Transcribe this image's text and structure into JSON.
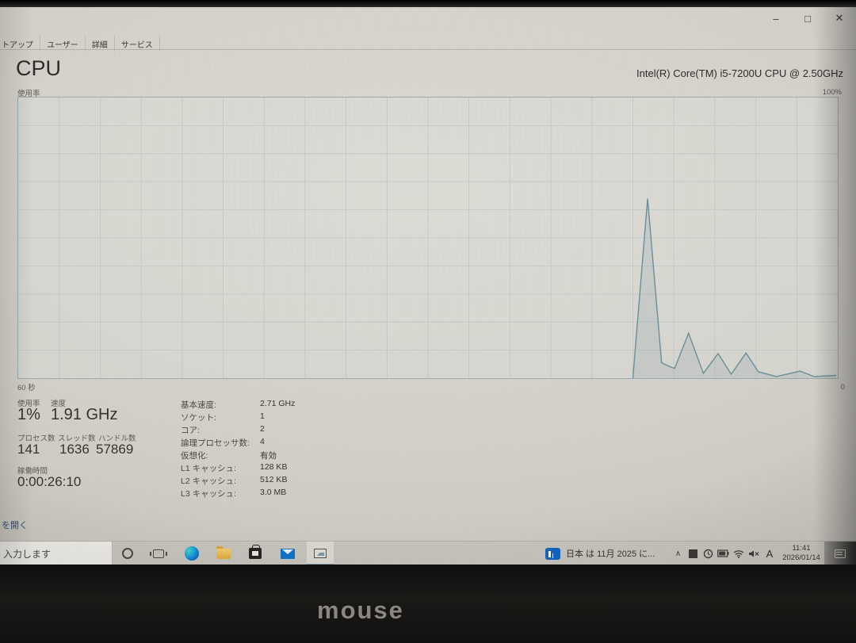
{
  "device": {
    "brand": "mouse"
  },
  "window": {
    "controls": {
      "minimize": "–",
      "maximize": "□",
      "close": "✕"
    },
    "tabs": [
      "トアップ",
      "ユーザー",
      "詳細",
      "サービス"
    ],
    "page_title": "CPU",
    "cpu_name": "Intel(R) Core(TM) i5-7200U CPU @ 2.50GHz",
    "usage_axis_label": "使用率",
    "max_label": "100%",
    "time_label": "60 秒",
    "zero_label": "0",
    "stats": {
      "usage_label": "使用率",
      "usage": "1%",
      "speed_label": "速度",
      "speed": "1.91 GHz",
      "processes_label": "プロセス数",
      "processes": "141",
      "threads_label": "スレッド数",
      "threads": "1636",
      "handles_label": "ハンドル数",
      "handles": "57869",
      "uptime_label": "稼働時間",
      "uptime": "0:00:26:10"
    },
    "details": [
      {
        "label": "基本速度:",
        "value": "2.71 GHz"
      },
      {
        "label": "ソケット:",
        "value": "1"
      },
      {
        "label": "コア:",
        "value": "2"
      },
      {
        "label": "論理プロセッサ数:",
        "value": "4"
      },
      {
        "label": "仮想化:",
        "value": "有効"
      },
      {
        "label": "L1 キャッシュ:",
        "value": "128 KB"
      },
      {
        "label": "L2 キャッシュ:",
        "value": "512 KB"
      },
      {
        "label": "L3 キャッシュ:",
        "value": "3.0 MB"
      }
    ],
    "resource_link": "を開く"
  },
  "chart_data": {
    "type": "area",
    "title": "CPU 使用率 (% over 60 s window, newest at right)",
    "x_axis": {
      "window_seconds": 60,
      "left_label": "60 秒",
      "right_label": "0"
    },
    "y_axis": {
      "min": 0,
      "max": 100,
      "max_label": "100%"
    },
    "grid": {
      "v_divisions": 20,
      "h_divisions": 10,
      "color": "#bcc8c9"
    },
    "series": [
      {
        "name": "CPU使用率",
        "line_color": "#6a8f99",
        "fill_color": "rgba(120,150,160,0.18)",
        "points": [
          [
            0.75,
            0
          ],
          [
            0.768,
            64
          ],
          [
            0.785,
            5.5
          ],
          [
            0.796,
            4
          ],
          [
            0.801,
            3.5
          ],
          [
            0.818,
            16
          ],
          [
            0.836,
            1.7
          ],
          [
            0.854,
            8.8
          ],
          [
            0.87,
            1.4
          ],
          [
            0.888,
            9
          ],
          [
            0.903,
            2.3
          ],
          [
            0.925,
            0.6
          ],
          [
            0.954,
            2.5
          ],
          [
            0.971,
            0.6
          ],
          [
            0.998,
            1
          ]
        ]
      }
    ]
  },
  "taskbar": {
    "search_text": "入力します",
    "news_text": "日本 は 11月 2025 に...",
    "tray_chevron": "∧",
    "ime_indicator": "A",
    "time": "11:41",
    "date": "2026/01/14"
  }
}
